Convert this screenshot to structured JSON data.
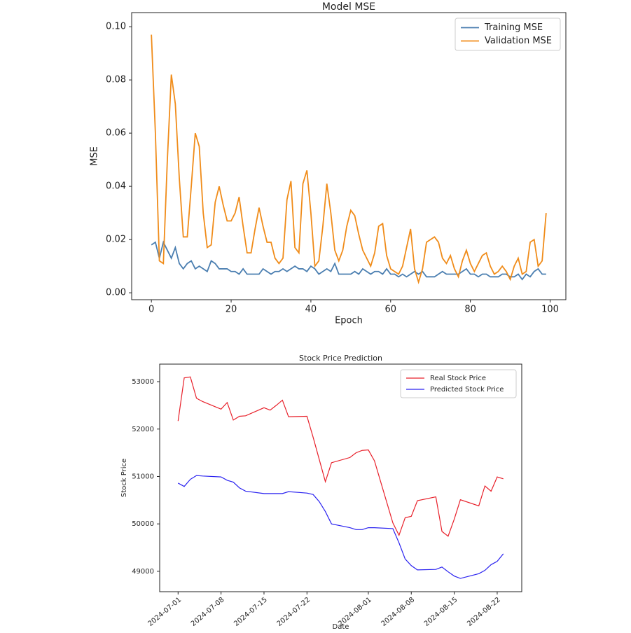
{
  "chart_data": [
    {
      "type": "line",
      "title": "Model MSE",
      "xlabel": "Epoch",
      "ylabel": "MSE",
      "x": [
        0,
        1,
        2,
        3,
        4,
        5,
        6,
        7,
        8,
        9,
        10,
        11,
        12,
        13,
        14,
        15,
        16,
        17,
        18,
        19,
        20,
        21,
        22,
        23,
        24,
        25,
        26,
        27,
        28,
        29,
        30,
        31,
        32,
        33,
        34,
        35,
        36,
        37,
        38,
        39,
        40,
        41,
        42,
        43,
        44,
        45,
        46,
        47,
        48,
        49,
        50,
        51,
        52,
        53,
        54,
        55,
        56,
        57,
        58,
        59,
        60,
        61,
        62,
        63,
        64,
        65,
        66,
        67,
        68,
        69,
        70,
        71,
        72,
        73,
        74,
        75,
        76,
        77,
        78,
        79,
        80,
        81,
        82,
        83,
        84,
        85,
        86,
        87,
        88,
        89,
        90,
        91,
        92,
        93,
        94,
        95,
        96,
        97,
        98,
        99
      ],
      "series": [
        {
          "name": "Training MSE",
          "color": "#4a7eb0",
          "values": [
            0.018,
            0.019,
            0.013,
            0.019,
            0.016,
            0.013,
            0.017,
            0.011,
            0.009,
            0.011,
            0.012,
            0.009,
            0.01,
            0.009,
            0.008,
            0.012,
            0.011,
            0.009,
            0.009,
            0.009,
            0.008,
            0.008,
            0.007,
            0.009,
            0.007,
            0.007,
            0.007,
            0.007,
            0.009,
            0.008,
            0.007,
            0.008,
            0.008,
            0.009,
            0.008,
            0.009,
            0.01,
            0.009,
            0.009,
            0.008,
            0.01,
            0.009,
            0.007,
            0.008,
            0.009,
            0.008,
            0.011,
            0.007,
            0.007,
            0.007,
            0.007,
            0.008,
            0.007,
            0.009,
            0.008,
            0.007,
            0.008,
            0.008,
            0.007,
            0.009,
            0.007,
            0.007,
            0.006,
            0.007,
            0.006,
            0.007,
            0.008,
            0.007,
            0.008,
            0.006,
            0.006,
            0.006,
            0.007,
            0.008,
            0.007,
            0.007,
            0.007,
            0.007,
            0.008,
            0.009,
            0.007,
            0.007,
            0.006,
            0.007,
            0.007,
            0.006,
            0.006,
            0.006,
            0.007,
            0.007,
            0.006,
            0.006,
            0.007,
            0.005,
            0.007,
            0.006,
            0.008,
            0.009,
            0.007,
            0.007
          ]
        },
        {
          "name": "Validation MSE",
          "color": "#f08c1a",
          "values": [
            0.097,
            0.06,
            0.012,
            0.011,
            0.05,
            0.082,
            0.071,
            0.043,
            0.021,
            0.021,
            0.04,
            0.06,
            0.055,
            0.03,
            0.017,
            0.018,
            0.034,
            0.04,
            0.033,
            0.027,
            0.027,
            0.03,
            0.036,
            0.025,
            0.015,
            0.015,
            0.024,
            0.032,
            0.025,
            0.019,
            0.019,
            0.013,
            0.011,
            0.013,
            0.035,
            0.042,
            0.017,
            0.015,
            0.041,
            0.046,
            0.03,
            0.01,
            0.012,
            0.025,
            0.041,
            0.03,
            0.016,
            0.012,
            0.016,
            0.025,
            0.031,
            0.029,
            0.022,
            0.016,
            0.013,
            0.01,
            0.015,
            0.025,
            0.026,
            0.014,
            0.009,
            0.008,
            0.007,
            0.01,
            0.017,
            0.024,
            0.009,
            0.004,
            0.009,
            0.019,
            0.02,
            0.021,
            0.019,
            0.013,
            0.011,
            0.014,
            0.009,
            0.006,
            0.012,
            0.016,
            0.011,
            0.008,
            0.011,
            0.014,
            0.015,
            0.01,
            0.007,
            0.008,
            0.01,
            0.008,
            0.005,
            0.01,
            0.013,
            0.007,
            0.008,
            0.019,
            0.02,
            0.01,
            0.012,
            0.03
          ]
        }
      ],
      "xlim": [
        -4.95,
        103.95
      ],
      "xticks": [
        0,
        20,
        40,
        60,
        80,
        100
      ],
      "ylim": [
        -0.0026,
        0.1053
      ],
      "yticks": [
        {
          "value": 0,
          "label": "0.00"
        },
        0.02,
        0.04,
        0.06,
        0.08,
        {
          "value": 0.1,
          "label": "0.10"
        }
      ],
      "legend": "upper right"
    },
    {
      "type": "line",
      "title": "Stock Price Prediction",
      "xlabel": "Date",
      "ylabel": "Stock Price",
      "x": [
        "2024-07-01",
        "2024-07-02",
        "2024-07-03",
        "2024-07-04",
        "2024-07-05",
        "2024-07-08",
        "2024-07-09",
        "2024-07-10",
        "2024-07-11",
        "2024-07-12",
        "2024-07-15",
        "2024-07-16",
        "2024-07-17",
        "2024-07-18",
        "2024-07-19",
        "2024-07-22",
        "2024-07-23",
        "2024-07-24",
        "2024-07-25",
        "2024-07-26",
        "2024-07-29",
        "2024-07-30",
        "2024-07-31",
        "2024-08-01",
        "2024-08-02",
        "2024-08-05",
        "2024-08-06",
        "2024-08-07",
        "2024-08-08",
        "2024-08-09",
        "2024-08-12",
        "2024-08-13",
        "2024-08-14",
        "2024-08-15",
        "2024-08-16",
        "2024-08-19",
        "2024-08-20",
        "2024-08-21",
        "2024-08-22",
        "2024-08-23"
      ],
      "series": [
        {
          "name": "Real Stock Price",
          "color": "#e8202a",
          "values": [
            52170,
            53080,
            53100,
            52650,
            52580,
            52420,
            52560,
            52190,
            52270,
            52280,
            52450,
            52400,
            52500,
            52610,
            52260,
            52270,
            51830,
            51360,
            50890,
            51290,
            51400,
            51500,
            51550,
            51560,
            51330,
            50020,
            49760,
            50130,
            50160,
            50490,
            50570,
            49840,
            49740,
            50100,
            50510,
            50380,
            50800,
            50690,
            50990,
            50950
          ]
        },
        {
          "name": "Predicted Stock Price",
          "color": "#2a22f0",
          "values": [
            50860,
            50790,
            50940,
            51020,
            51010,
            50990,
            50920,
            50880,
            50760,
            50690,
            50640,
            50640,
            50640,
            50640,
            50680,
            50650,
            50620,
            50470,
            50260,
            50000,
            49920,
            49880,
            49880,
            49920,
            49920,
            49900,
            49600,
            49260,
            49120,
            49030,
            49040,
            49090,
            48990,
            48900,
            48850,
            48950,
            49020,
            49140,
            49210,
            49370
          ]
        }
      ],
      "xlim": [
        "2024-06-28",
        "2024-08-26"
      ],
      "xticks": [
        "2024-07-01",
        "2024-07-08",
        "2024-07-15",
        "2024-07-22",
        "2024-08-01",
        "2024-08-08",
        "2024-08-15",
        "2024-08-22"
      ],
      "ylim": [
        48570,
        53370
      ],
      "yticks": [
        49000,
        50000,
        51000,
        52000,
        53000
      ],
      "legend": "upper right"
    }
  ]
}
